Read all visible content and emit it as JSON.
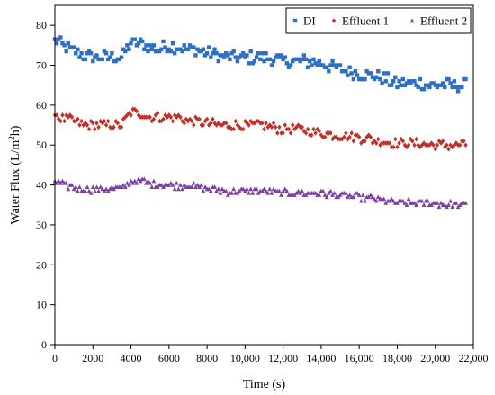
{
  "chart_data": {
    "type": "scatter",
    "xlabel": "Time (s)",
    "ylabel_prefix": "Water Flux (L/m",
    "ylabel_sup": "2",
    "ylabel_suffix": "h)",
    "xlim": [
      0,
      22000
    ],
    "ylim": [
      0,
      85
    ],
    "x_ticks": [
      0,
      2000,
      4000,
      6000,
      8000,
      10000,
      12000,
      14000,
      16000,
      18000,
      20000,
      22000
    ],
    "x_tick_labels": [
      "0",
      "2000",
      "4000",
      "6000",
      "8000",
      "10,000",
      "12,000",
      "14,000",
      "16,000",
      "18,000",
      "20,000",
      "22,000"
    ],
    "y_ticks": [
      0,
      10,
      20,
      30,
      40,
      50,
      60,
      70,
      80
    ],
    "y_tick_labels": [
      "0",
      "10",
      "20",
      "30",
      "40",
      "50",
      "60",
      "70",
      "80"
    ],
    "grid": false,
    "legend_position": "top-right",
    "x_range_sampled": [
      0,
      21600
    ],
    "sample_interval_s": 100,
    "series": [
      {
        "name": "DI",
        "color": "#2e6fc4",
        "marker": "square",
        "trend_x": [
          0,
          200,
          500,
          1000,
          1500,
          2000,
          2500,
          3000,
          3500,
          4000,
          4500,
          5000,
          5500,
          6000,
          6500,
          7000,
          7500,
          8000,
          9000,
          10000,
          11000,
          12000,
          13000,
          14000,
          15000,
          16000,
          17000,
          18000,
          19000,
          20000,
          21000,
          21600
        ],
        "trend_y": [
          76,
          76,
          74.5,
          73.5,
          72.5,
          72,
          72,
          72,
          72,
          75.5,
          75.5,
          74.5,
          74,
          75,
          74.5,
          74,
          74,
          73,
          72,
          72,
          72,
          71,
          71,
          70.5,
          69,
          68,
          67,
          65.5,
          65.5,
          65,
          65,
          65
        ],
        "jitter": 1.6
      },
      {
        "name": "Effluent 1",
        "color": "#c0312a",
        "marker": "diamond",
        "trend_x": [
          0,
          200,
          500,
          1000,
          1500,
          2000,
          2500,
          3000,
          3500,
          4000,
          4500,
          5000,
          5500,
          6000,
          6500,
          7000,
          7500,
          8000,
          9000,
          10000,
          11000,
          12000,
          13000,
          14000,
          15000,
          16000,
          17000,
          18000,
          19000,
          20000,
          21000,
          21600
        ],
        "trend_y": [
          58.5,
          57,
          56.5,
          56,
          55,
          55,
          55,
          55,
          55,
          58,
          58,
          57,
          57,
          57,
          57,
          56,
          56,
          55.5,
          55,
          55,
          55,
          54,
          54,
          53,
          52.5,
          52,
          51,
          50.5,
          50.5,
          50,
          50,
          50
        ],
        "jitter": 1.2
      },
      {
        "name": "Effluent 2",
        "color": "#7d3fa3",
        "marker": "triangle",
        "trend_x": [
          0,
          200,
          500,
          1000,
          1500,
          2000,
          2500,
          3000,
          3500,
          4000,
          4500,
          5000,
          5500,
          6000,
          6500,
          7000,
          7500,
          8000,
          9000,
          10000,
          11000,
          12000,
          13000,
          14000,
          15000,
          16000,
          17000,
          18000,
          19000,
          20000,
          21000,
          21600
        ],
        "trend_y": [
          41,
          40.5,
          40,
          39.5,
          39,
          39,
          39,
          39,
          39,
          41,
          41,
          40.5,
          40,
          40,
          40,
          40,
          39.5,
          39,
          38.5,
          38.5,
          38.5,
          38,
          38,
          38,
          37.5,
          37,
          36.5,
          35.5,
          35.5,
          35.5,
          35,
          35
        ],
        "jitter": 0.8
      }
    ]
  }
}
